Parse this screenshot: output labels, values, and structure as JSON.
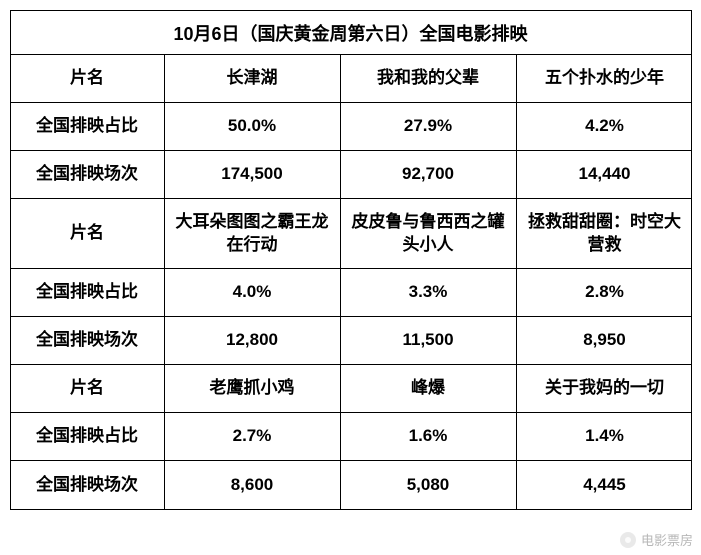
{
  "title": "10月6日（国庆黄金周第六日）全国电影排映",
  "labels": {
    "film_name": "片名",
    "share": "全国排映占比",
    "sessions": "全国排映场次"
  },
  "groups": [
    {
      "tall": false,
      "films": [
        {
          "name": "长津湖",
          "share": "50.0%",
          "sessions": "174,500"
        },
        {
          "name": "我和我的父辈",
          "share": "27.9%",
          "sessions": "92,700"
        },
        {
          "name": "五个扑水的少年",
          "share": "4.2%",
          "sessions": "14,440"
        }
      ]
    },
    {
      "tall": true,
      "films": [
        {
          "name": "大耳朵图图之霸王龙在行动",
          "share": "4.0%",
          "sessions": "12,800"
        },
        {
          "name": "皮皮鲁与鲁西西之罐头小人",
          "share": "3.3%",
          "sessions": "11,500"
        },
        {
          "name": "拯救甜甜圈：时空大营救",
          "share": "2.8%",
          "sessions": "8,950"
        }
      ]
    },
    {
      "tall": false,
      "films": [
        {
          "name": "老鹰抓小鸡",
          "share": "2.7%",
          "sessions": "8,600"
        },
        {
          "name": "峰爆",
          "share": "1.6%",
          "sessions": "5,080"
        },
        {
          "name": "关于我妈的一切",
          "share": "1.4%",
          "sessions": "4,445"
        }
      ]
    }
  ],
  "watermark": {
    "text": "电影票房"
  },
  "style": {
    "background_color": "#ffffff",
    "border_color": "#000000",
    "text_color": "#000000",
    "watermark_color": "#888888",
    "title_fontsize": 18,
    "cell_fontsize": 17
  }
}
